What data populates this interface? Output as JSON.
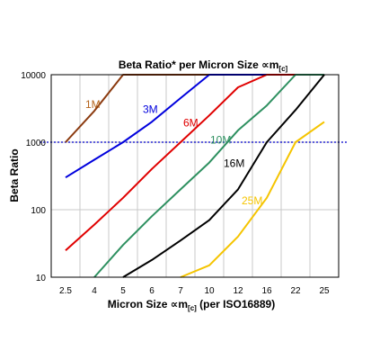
{
  "chart_data": {
    "type": "line",
    "title": "Beta Ratio* per Micron Size ∝m",
    "title_sub": "[c]",
    "xlabel": "Micron Size ∝m",
    "xlabel_sub": "[c]",
    "xlabel_suffix": " (per ISO16889)",
    "ylabel": "Beta Ratio",
    "y_scale": "log",
    "ylim": [
      10,
      10000
    ],
    "y_ticks": [
      "10",
      "100",
      "1000",
      "10000"
    ],
    "x_categories": [
      "2.5",
      "4",
      "5",
      "6",
      "7",
      "10",
      "12",
      "16",
      "22",
      "25"
    ],
    "grid": true,
    "reference_line": {
      "y": 1000,
      "style": "dotted",
      "color": "#0000cc"
    },
    "series": [
      {
        "name": "1M",
        "color": "#8b3a0f",
        "label_color": "#b5651d",
        "points": [
          [
            2.5,
            1000
          ],
          [
            4,
            2900
          ],
          [
            5,
            10000
          ],
          [
            25,
            10000
          ]
        ]
      },
      {
        "name": "3M",
        "color": "#0000dd",
        "label_color": "#0000dd",
        "points": [
          [
            2.5,
            300
          ],
          [
            4,
            550
          ],
          [
            5,
            1000
          ],
          [
            6,
            2000
          ],
          [
            7,
            4500
          ],
          [
            10,
            10000
          ],
          [
            25,
            10000
          ]
        ]
      },
      {
        "name": "6M",
        "color": "#e00000",
        "label_color": "#e00000",
        "points": [
          [
            2.5,
            25
          ],
          [
            4,
            60
          ],
          [
            5,
            150
          ],
          [
            6,
            400
          ],
          [
            7,
            1000
          ],
          [
            10,
            2500
          ],
          [
            12,
            6500
          ],
          [
            16,
            10000
          ],
          [
            25,
            10000
          ]
        ]
      },
      {
        "name": "10M",
        "color": "#2e9060",
        "label_color": "#2e9060",
        "points": [
          [
            4,
            10
          ],
          [
            5,
            30
          ],
          [
            6,
            80
          ],
          [
            7,
            200
          ],
          [
            10,
            500
          ],
          [
            12,
            1500
          ],
          [
            16,
            3500
          ],
          [
            22,
            10000
          ],
          [
            25,
            10000
          ]
        ]
      },
      {
        "name": "16M",
        "color": "#000000",
        "label_color": "#000000",
        "points": [
          [
            5,
            10
          ],
          [
            6,
            18
          ],
          [
            7,
            35
          ],
          [
            10,
            70
          ],
          [
            12,
            200
          ],
          [
            16,
            1000
          ],
          [
            22,
            3000
          ],
          [
            25,
            10000
          ]
        ]
      },
      {
        "name": "25M",
        "color": "#f5c400",
        "label_color": "#f5c400",
        "points": [
          [
            7,
            10
          ],
          [
            10,
            15
          ],
          [
            12,
            40
          ],
          [
            16,
            150
          ],
          [
            22,
            1000
          ],
          [
            25,
            2000
          ]
        ]
      }
    ]
  }
}
